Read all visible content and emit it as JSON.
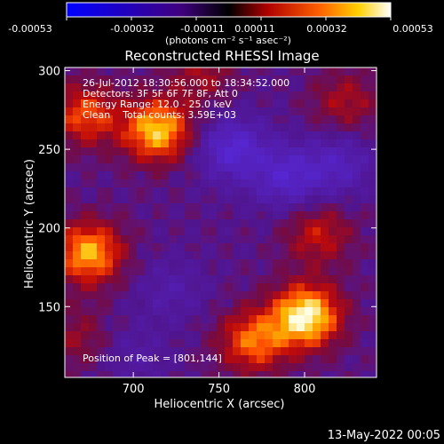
{
  "chart_data": {
    "type": "heatmap",
    "title": "Reconstructed RHESSI Image",
    "xlabel": "Heliocentric X (arcsec)",
    "ylabel": "Heliocentric Y (arcsec)",
    "xlim": [
      660,
      842
    ],
    "ylim": [
      105,
      302
    ],
    "x_ticks": [
      700,
      750,
      800
    ],
    "y_ticks": [
      150,
      200,
      250,
      300
    ],
    "colorbar": {
      "ticks": [
        "-0.00053",
        "-0.00032",
        "-0.00011",
        "0.00011",
        "0.00032",
        "0.00053"
      ],
      "unit_label": "(photons cm⁻² s⁻¹ asec⁻²)",
      "range": [
        -0.00053,
        0.00053
      ]
    },
    "annotations": [
      "26-Jul-2012 18:30:56.000 to 18:34:52.000",
      "Detectors: 3F 5F 6F 7F 8F, Att 0",
      "Energy Range: 12.0 - 25.0 keV",
      "Clean    Total counts: 3.59E+03"
    ],
    "peak_label": "Position of Peak = [801,144]",
    "peak": [
      801,
      144
    ],
    "sources": [
      {
        "x": 801,
        "y": 144,
        "value": 0.00053
      },
      {
        "x": 714,
        "y": 262,
        "value": 0.00045
      },
      {
        "x": 674,
        "y": 184,
        "value": 0.00042
      },
      {
        "x": 672,
        "y": 272,
        "value": 0.0003
      },
      {
        "x": 770,
        "y": 128,
        "value": 0.00034
      },
      {
        "x": 808,
        "y": 196,
        "value": 0.00022
      },
      {
        "x": 824,
        "y": 280,
        "value": 0.00018
      },
      {
        "x": 740,
        "y": 298,
        "value": 0.00016
      },
      {
        "x": 668,
        "y": 130,
        "value": 0.00014
      },
      {
        "x": 758,
        "y": 250,
        "value": -0.0003
      },
      {
        "x": 790,
        "y": 232,
        "value": -0.00026
      },
      {
        "x": 820,
        "y": 240,
        "value": -0.0002
      },
      {
        "x": 722,
        "y": 160,
        "value": -0.00012
      },
      {
        "x": 700,
        "y": 120,
        "value": -0.0001
      }
    ]
  },
  "footer": {
    "date": "13-May-2022 00:05"
  }
}
